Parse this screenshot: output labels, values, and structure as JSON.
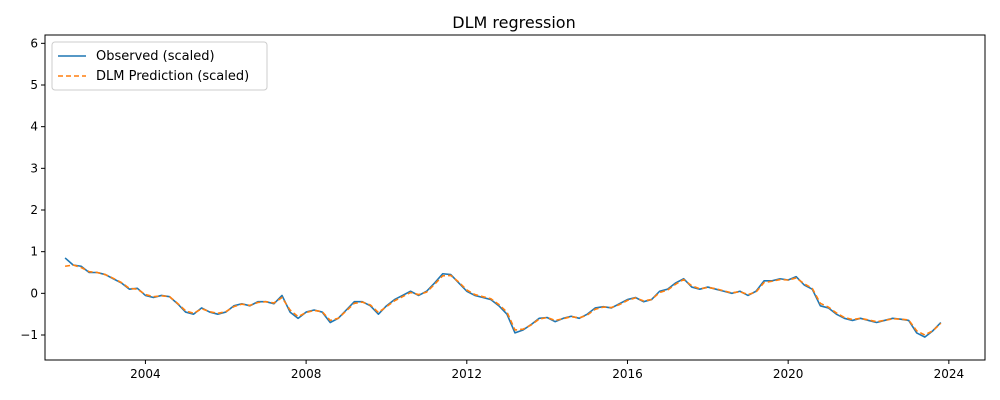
{
  "chart_data": {
    "type": "line",
    "title": "DLM regression",
    "xlabel": "",
    "ylabel": "",
    "xlim": [
      2001.5,
      2024.9
    ],
    "ylim": [
      -1.6,
      6.2
    ],
    "x_ticks": [
      {
        "value": 2004,
        "label": "2004"
      },
      {
        "value": 2008,
        "label": "2008"
      },
      {
        "value": 2012,
        "label": "2012"
      },
      {
        "value": 2016,
        "label": "2016"
      },
      {
        "value": 2020,
        "label": "2020"
      },
      {
        "value": 2024,
        "label": "2024"
      }
    ],
    "y_ticks": [
      {
        "value": -1,
        "label": "−1"
      },
      {
        "value": 0,
        "label": "0"
      },
      {
        "value": 1,
        "label": "1"
      },
      {
        "value": 2,
        "label": "2"
      },
      {
        "value": 3,
        "label": "3"
      },
      {
        "value": 4,
        "label": "4"
      },
      {
        "value": 5,
        "label": "5"
      },
      {
        "value": 6,
        "label": "6"
      }
    ],
    "grid": false,
    "legend": {
      "placement": "top-left"
    },
    "series": [
      {
        "name": "Observed (scaled)",
        "color": "#1f77b4",
        "style": "solid",
        "points": [
          [
            2002.0,
            0.85
          ],
          [
            2002.2,
            0.68
          ],
          [
            2002.4,
            0.65
          ],
          [
            2002.6,
            0.5
          ],
          [
            2002.8,
            0.5
          ],
          [
            2003.0,
            0.45
          ],
          [
            2003.2,
            0.35
          ],
          [
            2003.4,
            0.25
          ],
          [
            2003.6,
            0.1
          ],
          [
            2003.8,
            0.12
          ],
          [
            2004.0,
            -0.05
          ],
          [
            2004.2,
            -0.1
          ],
          [
            2004.4,
            -0.05
          ],
          [
            2004.6,
            -0.08
          ],
          [
            2004.8,
            -0.25
          ],
          [
            2005.0,
            -0.45
          ],
          [
            2005.2,
            -0.5
          ],
          [
            2005.4,
            -0.35
          ],
          [
            2005.6,
            -0.45
          ],
          [
            2005.8,
            -0.5
          ],
          [
            2006.0,
            -0.45
          ],
          [
            2006.2,
            -0.3
          ],
          [
            2006.4,
            -0.25
          ],
          [
            2006.6,
            -0.3
          ],
          [
            2006.8,
            -0.2
          ],
          [
            2007.0,
            -0.2
          ],
          [
            2007.2,
            -0.25
          ],
          [
            2007.4,
            -0.05
          ],
          [
            2007.6,
            -0.45
          ],
          [
            2007.8,
            -0.6
          ],
          [
            2008.0,
            -0.45
          ],
          [
            2008.2,
            -0.4
          ],
          [
            2008.4,
            -0.45
          ],
          [
            2008.6,
            -0.7
          ],
          [
            2008.8,
            -0.6
          ],
          [
            2009.0,
            -0.4
          ],
          [
            2009.2,
            -0.2
          ],
          [
            2009.4,
            -0.2
          ],
          [
            2009.6,
            -0.3
          ],
          [
            2009.8,
            -0.5
          ],
          [
            2010.0,
            -0.3
          ],
          [
            2010.2,
            -0.15
          ],
          [
            2010.4,
            -0.05
          ],
          [
            2010.6,
            0.05
          ],
          [
            2010.8,
            -0.05
          ],
          [
            2011.0,
            0.05
          ],
          [
            2011.2,
            0.25
          ],
          [
            2011.4,
            0.47
          ],
          [
            2011.6,
            0.45
          ],
          [
            2011.8,
            0.25
          ],
          [
            2012.0,
            0.05
          ],
          [
            2012.2,
            -0.05
          ],
          [
            2012.4,
            -0.1
          ],
          [
            2012.6,
            -0.15
          ],
          [
            2012.8,
            -0.3
          ],
          [
            2013.0,
            -0.5
          ],
          [
            2013.2,
            -0.95
          ],
          [
            2013.4,
            -0.88
          ],
          [
            2013.6,
            -0.75
          ],
          [
            2013.8,
            -0.6
          ],
          [
            2014.0,
            -0.58
          ],
          [
            2014.2,
            -0.68
          ],
          [
            2014.4,
            -0.6
          ],
          [
            2014.6,
            -0.55
          ],
          [
            2014.8,
            -0.6
          ],
          [
            2015.0,
            -0.5
          ],
          [
            2015.2,
            -0.35
          ],
          [
            2015.4,
            -0.32
          ],
          [
            2015.6,
            -0.35
          ],
          [
            2015.8,
            -0.25
          ],
          [
            2016.0,
            -0.15
          ],
          [
            2016.2,
            -0.1
          ],
          [
            2016.4,
            -0.2
          ],
          [
            2016.6,
            -0.15
          ],
          [
            2016.8,
            0.05
          ],
          [
            2017.0,
            0.1
          ],
          [
            2017.2,
            0.25
          ],
          [
            2017.4,
            0.35
          ],
          [
            2017.6,
            0.15
          ],
          [
            2017.8,
            0.1
          ],
          [
            2018.0,
            0.15
          ],
          [
            2018.2,
            0.1
          ],
          [
            2018.4,
            0.05
          ],
          [
            2018.6,
            0.0
          ],
          [
            2018.8,
            0.05
          ],
          [
            2019.0,
            -0.05
          ],
          [
            2019.2,
            0.05
          ],
          [
            2019.4,
            0.3
          ],
          [
            2019.6,
            0.3
          ],
          [
            2019.8,
            0.35
          ],
          [
            2020.0,
            0.32
          ],
          [
            2020.2,
            0.4
          ],
          [
            2020.4,
            0.2
          ],
          [
            2020.6,
            0.1
          ],
          [
            2020.8,
            -0.3
          ],
          [
            2021.0,
            -0.35
          ],
          [
            2021.2,
            -0.5
          ],
          [
            2021.4,
            -0.6
          ],
          [
            2021.6,
            -0.65
          ],
          [
            2021.8,
            -0.6
          ],
          [
            2022.0,
            -0.65
          ],
          [
            2022.2,
            -0.7
          ],
          [
            2022.4,
            -0.65
          ],
          [
            2022.6,
            -0.6
          ],
          [
            2022.8,
            -0.62
          ],
          [
            2023.0,
            -0.65
          ],
          [
            2023.2,
            -0.95
          ],
          [
            2023.4,
            -1.05
          ],
          [
            2023.6,
            -0.9
          ],
          [
            2023.8,
            -0.7
          ]
        ]
      },
      {
        "name": "DLM Prediction (scaled)",
        "color": "#ff7f0e",
        "style": "dashed",
        "points": [
          [
            2002.0,
            0.65
          ],
          [
            2002.2,
            0.68
          ],
          [
            2002.4,
            0.62
          ],
          [
            2002.6,
            0.52
          ],
          [
            2002.8,
            0.5
          ],
          [
            2003.0,
            0.45
          ],
          [
            2003.2,
            0.36
          ],
          [
            2003.4,
            0.26
          ],
          [
            2003.6,
            0.12
          ],
          [
            2003.8,
            0.1
          ],
          [
            2004.0,
            -0.03
          ],
          [
            2004.2,
            -0.08
          ],
          [
            2004.4,
            -0.06
          ],
          [
            2004.6,
            -0.08
          ],
          [
            2004.8,
            -0.24
          ],
          [
            2005.0,
            -0.42
          ],
          [
            2005.2,
            -0.48
          ],
          [
            2005.4,
            -0.37
          ],
          [
            2005.6,
            -0.44
          ],
          [
            2005.8,
            -0.48
          ],
          [
            2006.0,
            -0.44
          ],
          [
            2006.2,
            -0.32
          ],
          [
            2006.4,
            -0.26
          ],
          [
            2006.6,
            -0.29
          ],
          [
            2006.8,
            -0.22
          ],
          [
            2007.0,
            -0.2
          ],
          [
            2007.2,
            -0.23
          ],
          [
            2007.4,
            -0.1
          ],
          [
            2007.6,
            -0.4
          ],
          [
            2007.8,
            -0.56
          ],
          [
            2008.0,
            -0.46
          ],
          [
            2008.2,
            -0.41
          ],
          [
            2008.4,
            -0.44
          ],
          [
            2008.6,
            -0.65
          ],
          [
            2008.8,
            -0.6
          ],
          [
            2009.0,
            -0.42
          ],
          [
            2009.2,
            -0.24
          ],
          [
            2009.4,
            -0.21
          ],
          [
            2009.6,
            -0.28
          ],
          [
            2009.8,
            -0.46
          ],
          [
            2010.0,
            -0.32
          ],
          [
            2010.2,
            -0.18
          ],
          [
            2010.4,
            -0.08
          ],
          [
            2010.6,
            0.02
          ],
          [
            2010.8,
            -0.03
          ],
          [
            2011.0,
            0.03
          ],
          [
            2011.2,
            0.22
          ],
          [
            2011.4,
            0.42
          ],
          [
            2011.6,
            0.43
          ],
          [
            2011.8,
            0.27
          ],
          [
            2012.0,
            0.08
          ],
          [
            2012.2,
            -0.03
          ],
          [
            2012.4,
            -0.08
          ],
          [
            2012.6,
            -0.13
          ],
          [
            2012.8,
            -0.27
          ],
          [
            2013.0,
            -0.45
          ],
          [
            2013.2,
            -0.88
          ],
          [
            2013.4,
            -0.86
          ],
          [
            2013.6,
            -0.76
          ],
          [
            2013.8,
            -0.62
          ],
          [
            2014.0,
            -0.58
          ],
          [
            2014.2,
            -0.65
          ],
          [
            2014.4,
            -0.61
          ],
          [
            2014.6,
            -0.56
          ],
          [
            2014.8,
            -0.59
          ],
          [
            2015.0,
            -0.52
          ],
          [
            2015.2,
            -0.38
          ],
          [
            2015.4,
            -0.33
          ],
          [
            2015.6,
            -0.34
          ],
          [
            2015.8,
            -0.27
          ],
          [
            2016.0,
            -0.17
          ],
          [
            2016.2,
            -0.11
          ],
          [
            2016.4,
            -0.18
          ],
          [
            2016.6,
            -0.15
          ],
          [
            2016.8,
            0.02
          ],
          [
            2017.0,
            0.08
          ],
          [
            2017.2,
            0.22
          ],
          [
            2017.4,
            0.33
          ],
          [
            2017.6,
            0.18
          ],
          [
            2017.8,
            0.11
          ],
          [
            2018.0,
            0.14
          ],
          [
            2018.2,
            0.11
          ],
          [
            2018.4,
            0.06
          ],
          [
            2018.6,
            0.01
          ],
          [
            2018.8,
            0.04
          ],
          [
            2019.0,
            -0.03
          ],
          [
            2019.2,
            0.03
          ],
          [
            2019.4,
            0.26
          ],
          [
            2019.6,
            0.29
          ],
          [
            2019.8,
            0.33
          ],
          [
            2020.0,
            0.32
          ],
          [
            2020.2,
            0.37
          ],
          [
            2020.4,
            0.23
          ],
          [
            2020.6,
            0.12
          ],
          [
            2020.8,
            -0.24
          ],
          [
            2021.0,
            -0.33
          ],
          [
            2021.2,
            -0.47
          ],
          [
            2021.4,
            -0.58
          ],
          [
            2021.6,
            -0.63
          ],
          [
            2021.8,
            -0.6
          ],
          [
            2022.0,
            -0.64
          ],
          [
            2022.2,
            -0.68
          ],
          [
            2022.4,
            -0.65
          ],
          [
            2022.6,
            -0.61
          ],
          [
            2022.8,
            -0.62
          ],
          [
            2023.0,
            -0.64
          ],
          [
            2023.2,
            -0.9
          ],
          [
            2023.4,
            -1.0
          ],
          [
            2023.6,
            -0.9
          ],
          [
            2023.8,
            -0.72
          ]
        ]
      }
    ]
  }
}
